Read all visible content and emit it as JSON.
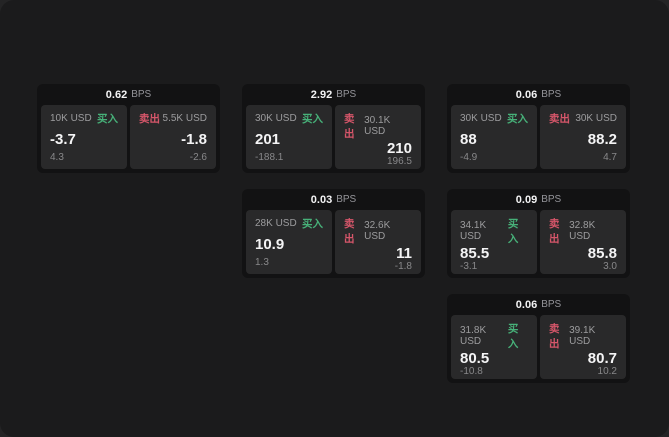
{
  "labels": {
    "buy": "买入",
    "sell": "卖出",
    "bps": "BPS"
  },
  "colors": {
    "buy": "#47b179",
    "sell": "#d6566a",
    "page_background": "#1b1b1c",
    "card_background": "#121213",
    "panel_background": "#29292a"
  },
  "cards": [
    {
      "bps": "0.62",
      "col": 0,
      "row": 0,
      "buy": {
        "amount": "10K USD",
        "price": "-3.7",
        "delta": "4.3"
      },
      "sell": {
        "amount": "5.5K USD",
        "price": "-1.8",
        "delta": "-2.6"
      }
    },
    {
      "bps": "2.92",
      "col": 1,
      "row": 0,
      "buy": {
        "amount": "30K USD",
        "price": "201",
        "delta": "-188.1"
      },
      "sell": {
        "amount": "30.1K USD",
        "price": "210",
        "delta": "196.5"
      }
    },
    {
      "bps": "0.06",
      "col": 2,
      "row": 0,
      "buy": {
        "amount": "30K USD",
        "price": "88",
        "delta": "-4.9"
      },
      "sell": {
        "amount": "30K USD",
        "price": "88.2",
        "delta": "4.7"
      }
    },
    {
      "bps": "0.03",
      "col": 1,
      "row": 1,
      "buy": {
        "amount": "28K USD",
        "price": "10.9",
        "delta": "1.3"
      },
      "sell": {
        "amount": "32.6K USD",
        "price": "11",
        "delta": "-1.8"
      }
    },
    {
      "bps": "0.09",
      "col": 2,
      "row": 1,
      "buy": {
        "amount": "34.1K USD",
        "price": "85.5",
        "delta": "-3.1"
      },
      "sell": {
        "amount": "32.8K USD",
        "price": "85.8",
        "delta": "3.0"
      }
    },
    {
      "bps": "0.06",
      "col": 2,
      "row": 2,
      "buy": {
        "amount": "31.8K USD",
        "price": "80.5",
        "delta": "-10.8"
      },
      "sell": {
        "amount": "39.1K USD",
        "price": "80.7",
        "delta": "10.2"
      }
    }
  ]
}
